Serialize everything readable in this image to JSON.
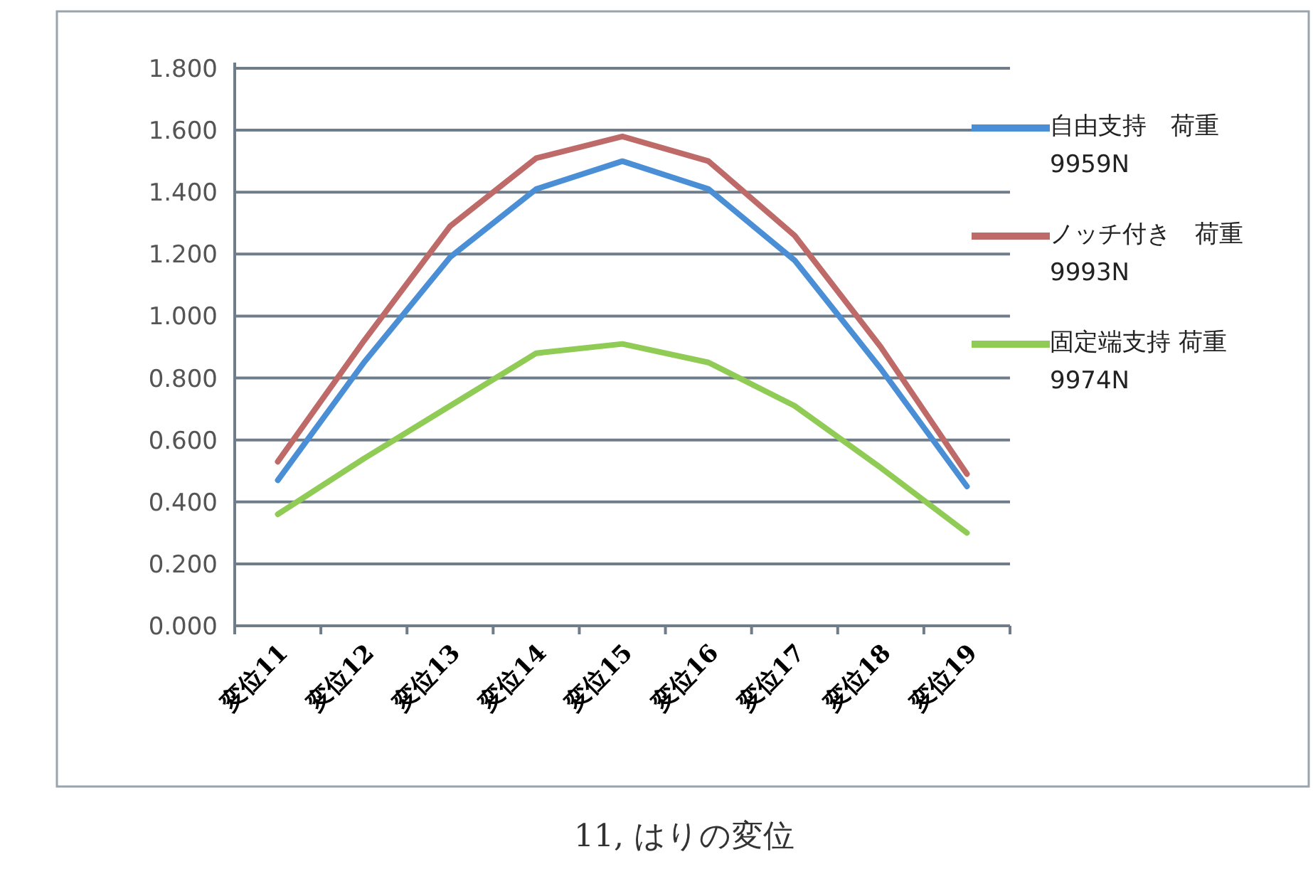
{
  "chart_data": {
    "type": "line",
    "title": "11, はりの変位",
    "categories": [
      "変位11",
      "変位12",
      "変位13",
      "変位14",
      "変位15",
      "変位16",
      "変位17",
      "変位18",
      "変位19"
    ],
    "series": [
      {
        "name": "自由支持　荷重 9959N",
        "color": "#4a8fd6",
        "values": [
          0.47,
          0.85,
          1.19,
          1.41,
          1.5,
          1.41,
          1.18,
          0.83,
          0.45
        ]
      },
      {
        "name": "ノッチ付き　荷重 9993N",
        "color": "#bd6a68",
        "values": [
          0.53,
          0.92,
          1.29,
          1.51,
          1.58,
          1.5,
          1.26,
          0.9,
          0.49
        ]
      },
      {
        "name": "固定端支持 荷重 9974N",
        "color": "#8fcb55",
        "values": [
          0.36,
          0.54,
          0.71,
          0.88,
          0.91,
          0.85,
          0.71,
          0.51,
          0.3
        ]
      }
    ],
    "ylim": [
      0,
      1.8
    ],
    "yticks": [
      {
        "value": 0,
        "label": "0.000"
      },
      {
        "value": 0.2,
        "label": "0.200"
      },
      {
        "value": 0.4,
        "label": "0.400"
      },
      {
        "value": 0.6,
        "label": "0.600"
      },
      {
        "value": 0.8,
        "label": "0.800"
      },
      {
        "value": 1.0,
        "label": "1.000"
      },
      {
        "value": 1.2,
        "label": "1.200"
      },
      {
        "value": 1.4,
        "label": "1.400"
      },
      {
        "value": 1.6,
        "label": "1.600"
      },
      {
        "value": 1.8,
        "label": "1.800"
      }
    ],
    "grid": "y",
    "legend": "right",
    "marker": "none",
    "line_style": "solid"
  }
}
